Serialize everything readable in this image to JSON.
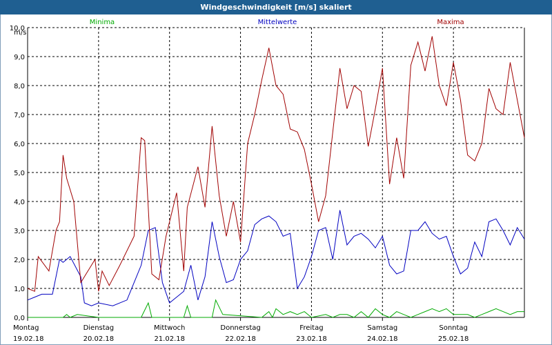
{
  "window": {
    "title": "Windgeschwindigkeit [m/s] skaliert"
  },
  "colors": {
    "minima": "#00aa00",
    "mittel": "#0000c0",
    "maxima": "#a00000",
    "grid": "#000000",
    "title_bg": "#1f5f91"
  },
  "chart_data": {
    "type": "line",
    "title": "Windgeschwindigkeit [m/s] skaliert",
    "ylabel": "m/s",
    "ylim": [
      0,
      10
    ],
    "xlim": [
      0,
      7
    ],
    "yticks": [
      "0,0",
      "1,0",
      "2,0",
      "3,0",
      "4,0",
      "5,0",
      "6,0",
      "7,0",
      "8,0",
      "9,0",
      "10,0"
    ],
    "days": [
      {
        "name": "Montag",
        "date": "19.02.18"
      },
      {
        "name": "Dienstag",
        "date": "20.02.18"
      },
      {
        "name": "Mittwoch",
        "date": "21.02.18"
      },
      {
        "name": "Donnerstag",
        "date": "22.02.18"
      },
      {
        "name": "Freitag",
        "date": "23.02.18"
      },
      {
        "name": "Samstag",
        "date": "24.02.18"
      },
      {
        "name": "Sonntag",
        "date": "25.02.18"
      }
    ],
    "series": [
      {
        "name": "Minima",
        "key": "minima",
        "x": [
          0,
          0.5,
          0.55,
          0.6,
          0.7,
          1.0,
          1.6,
          1.7,
          1.75,
          2.2,
          2.25,
          2.3,
          2.6,
          2.65,
          2.75,
          3.3,
          3.4,
          3.45,
          3.5,
          3.6,
          3.7,
          3.8,
          3.9,
          4.0,
          4.2,
          4.3,
          4.4,
          4.5,
          4.6,
          4.7,
          4.8,
          4.9,
          5.0,
          5.1,
          5.2,
          5.3,
          5.4,
          5.5,
          5.6,
          5.7,
          5.8,
          5.9,
          6.0,
          6.2,
          6.3,
          6.4,
          6.5,
          6.6,
          6.7,
          6.8,
          6.9,
          7.0
        ],
        "values": [
          0,
          0,
          0.1,
          0,
          0.1,
          0,
          0,
          0.5,
          0,
          0,
          0.4,
          0,
          0,
          0.6,
          0.1,
          0,
          0.2,
          0,
          0.3,
          0.1,
          0.2,
          0.1,
          0.2,
          0,
          0.1,
          0,
          0.1,
          0.1,
          0,
          0.2,
          0,
          0.3,
          0.1,
          0,
          0.2,
          0.1,
          0,
          0.1,
          0.2,
          0.3,
          0.2,
          0.3,
          0.1,
          0.1,
          0,
          0.1,
          0.2,
          0.3,
          0.2,
          0.1,
          0.2,
          0.2
        ]
      },
      {
        "name": "Mittelwerte",
        "key": "mittel",
        "x": [
          0,
          0.1,
          0.2,
          0.35,
          0.45,
          0.5,
          0.6,
          0.75,
          0.8,
          0.9,
          1.0,
          1.2,
          1.4,
          1.5,
          1.6,
          1.7,
          1.8,
          1.9,
          2.0,
          2.2,
          2.3,
          2.4,
          2.5,
          2.6,
          2.7,
          2.8,
          2.9,
          3.0,
          3.1,
          3.2,
          3.3,
          3.4,
          3.5,
          3.6,
          3.7,
          3.8,
          3.9,
          4.0,
          4.1,
          4.2,
          4.3,
          4.4,
          4.5,
          4.6,
          4.7,
          4.8,
          4.9,
          5.0,
          5.1,
          5.2,
          5.3,
          5.4,
          5.5,
          5.6,
          5.7,
          5.8,
          5.9,
          6.0,
          6.1,
          6.2,
          6.3,
          6.4,
          6.5,
          6.6,
          6.7,
          6.8,
          6.9,
          7.0
        ],
        "values": [
          0.6,
          0.7,
          0.8,
          0.8,
          2.0,
          1.9,
          2.1,
          1.4,
          0.5,
          0.4,
          0.5,
          0.4,
          0.6,
          1.2,
          1.8,
          3.0,
          3.1,
          1.2,
          0.5,
          0.9,
          1.8,
          0.6,
          1.4,
          3.3,
          2.1,
          1.2,
          1.3,
          2.0,
          2.3,
          3.2,
          3.4,
          3.5,
          3.3,
          2.8,
          2.9,
          1.0,
          1.4,
          2.1,
          3.0,
          3.1,
          2.0,
          3.7,
          2.5,
          2.8,
          2.9,
          2.7,
          2.4,
          2.8,
          1.8,
          1.5,
          1.6,
          3.0,
          3.0,
          3.3,
          2.9,
          2.7,
          2.8,
          2.1,
          1.5,
          1.7,
          2.6,
          2.1,
          3.3,
          3.4,
          3.0,
          2.5,
          3.1,
          2.7
        ]
      },
      {
        "name": "Maxima",
        "key": "maxima",
        "x": [
          0,
          0.1,
          0.15,
          0.3,
          0.4,
          0.45,
          0.5,
          0.55,
          0.65,
          0.75,
          0.85,
          0.95,
          1.0,
          1.05,
          1.15,
          1.3,
          1.5,
          1.6,
          1.65,
          1.75,
          1.85,
          1.95,
          2.1,
          2.2,
          2.25,
          2.4,
          2.5,
          2.6,
          2.7,
          2.8,
          2.9,
          3.0,
          3.1,
          3.2,
          3.3,
          3.4,
          3.5,
          3.6,
          3.7,
          3.8,
          3.9,
          4.0,
          4.1,
          4.2,
          4.3,
          4.4,
          4.5,
          4.6,
          4.7,
          4.8,
          4.9,
          5.0,
          5.1,
          5.2,
          5.3,
          5.4,
          5.5,
          5.6,
          5.7,
          5.8,
          5.9,
          6.0,
          6.1,
          6.2,
          6.3,
          6.4,
          6.5,
          6.6,
          6.7,
          6.8,
          6.9,
          7.0
        ],
        "values": [
          1.0,
          0.9,
          2.1,
          1.6,
          3.0,
          3.3,
          5.6,
          4.8,
          4.0,
          1.2,
          1.6,
          2.0,
          0.9,
          1.6,
          1.1,
          1.8,
          2.8,
          6.2,
          6.1,
          1.5,
          1.3,
          2.8,
          4.3,
          1.6,
          3.8,
          5.2,
          3.8,
          6.6,
          4.2,
          2.8,
          4.0,
          2.6,
          6.0,
          7.0,
          8.2,
          9.3,
          8.0,
          7.7,
          6.5,
          6.4,
          5.8,
          4.6,
          3.3,
          4.2,
          6.4,
          8.6,
          7.2,
          8.0,
          7.8,
          5.9,
          7.2,
          8.6,
          4.6,
          6.2,
          4.8,
          8.7,
          9.5,
          8.5,
          9.7,
          8.0,
          7.3,
          8.8,
          7.5,
          5.6,
          5.4,
          6.0,
          7.9,
          7.2,
          7.0,
          8.8,
          7.5,
          6.2
        ]
      }
    ]
  }
}
